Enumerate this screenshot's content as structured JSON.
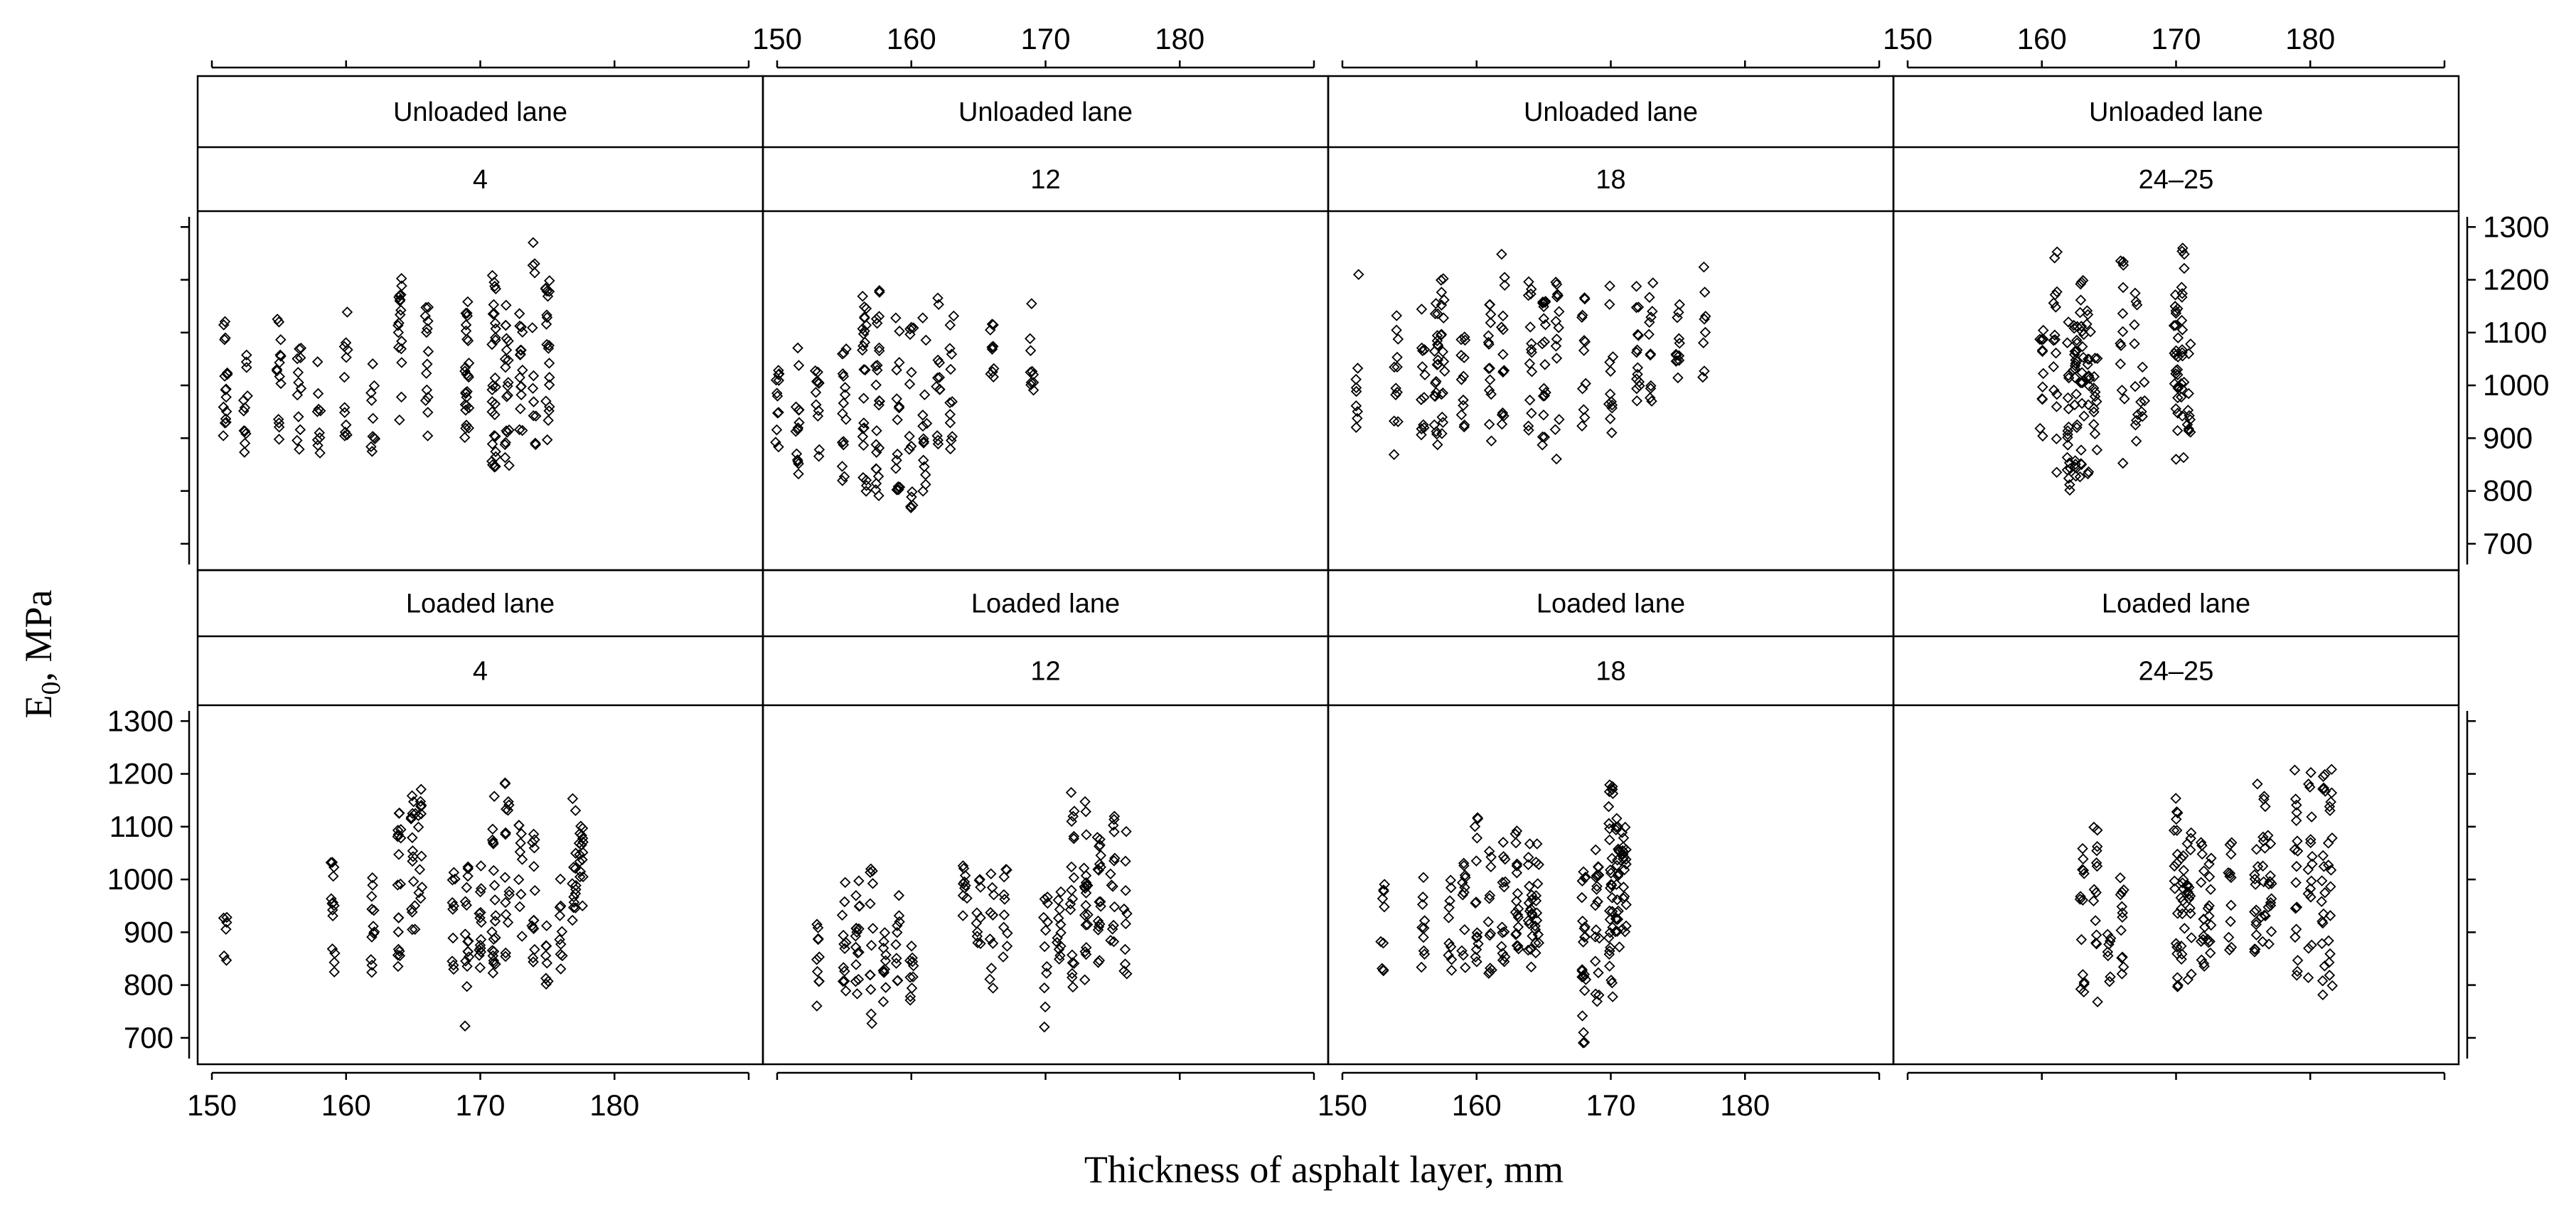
{
  "chart_data": {
    "type": "scatter",
    "xlabel": "Thickness of asphalt layer, mm",
    "ylabel": "E",
    "ylabel_sub": "0",
    "ylabel_suffix": ", MPa",
    "xlim": [
      150,
      190
    ],
    "ylim": [
      650,
      1330
    ],
    "x_ticks": [
      150,
      160,
      170,
      180
    ],
    "y_ticks": [
      700,
      800,
      900,
      1000,
      1100,
      1200,
      1300
    ],
    "marker": "open-diamond",
    "grid": false,
    "layout": "lattice 4 columns x 2 rows, alternating axis labels",
    "panels": [
      {
        "lane": "Unloaded lane",
        "age": "4",
        "row": 0,
        "col": 0,
        "groups": [
          [
            151,
            840,
            1130,
            16
          ],
          [
            152.5,
            870,
            1110,
            12
          ],
          [
            155,
            880,
            1130,
            14
          ],
          [
            156.5,
            870,
            1100,
            12
          ],
          [
            158,
            860,
            1080,
            10
          ],
          [
            160,
            880,
            1150,
            12
          ],
          [
            162,
            870,
            1050,
            10
          ],
          [
            164,
            900,
            1220,
            18
          ],
          [
            166,
            900,
            1170,
            14
          ],
          [
            169,
            880,
            1170,
            26
          ],
          [
            171,
            840,
            1210,
            30
          ],
          [
            172,
            840,
            1180,
            20
          ],
          [
            173,
            880,
            1190,
            16
          ],
          [
            174,
            880,
            1280,
            12
          ],
          [
            175,
            880,
            1250,
            20
          ]
        ]
      },
      {
        "lane": "Unloaded lane",
        "age": "12",
        "row": 0,
        "col": 1,
        "groups": [
          [
            150,
            830,
            1090,
            12
          ],
          [
            151.5,
            810,
            1080,
            14
          ],
          [
            153,
            820,
            1060,
            12
          ],
          [
            155,
            810,
            1080,
            16
          ],
          [
            156.5,
            790,
            1170,
            24
          ],
          [
            157.5,
            780,
            1210,
            24
          ],
          [
            159,
            800,
            1150,
            16
          ],
          [
            160,
            760,
            1130,
            14
          ],
          [
            161,
            780,
            1150,
            14
          ],
          [
            162,
            830,
            1180,
            12
          ],
          [
            163,
            860,
            1150,
            12
          ],
          [
            166,
            1010,
            1140,
            10
          ],
          [
            169,
            990,
            1160,
            10
          ]
        ]
      },
      {
        "lane": "Unloaded lane",
        "age": "18",
        "row": 0,
        "col": 2,
        "groups": [
          [
            151,
            920,
            1040,
            8
          ],
          [
            151.2,
            1210,
            1210,
            1
          ],
          [
            154,
            860,
            1140,
            12
          ],
          [
            156,
            880,
            1170,
            12
          ],
          [
            157,
            880,
            1200,
            20
          ],
          [
            157.5,
            890,
            1210,
            16
          ],
          [
            159,
            920,
            1110,
            12
          ],
          [
            161,
            890,
            1170,
            14
          ],
          [
            162,
            890,
            1270,
            14
          ],
          [
            164,
            880,
            1240,
            14
          ],
          [
            165,
            860,
            1210,
            18
          ],
          [
            166,
            860,
            1200,
            14
          ],
          [
            168,
            920,
            1180,
            12
          ],
          [
            170,
            900,
            1190,
            12
          ],
          [
            172,
            950,
            1190,
            14
          ],
          [
            173,
            970,
            1200,
            12
          ],
          [
            175,
            990,
            1170,
            12
          ],
          [
            177,
            990,
            1230,
            8
          ]
        ]
      },
      {
        "lane": "Unloaded lane",
        "age": "24–25",
        "row": 0,
        "col": 3,
        "groups": [
          [
            160,
            880,
            1150,
            12
          ],
          [
            161,
            790,
            1260,
            16
          ],
          [
            162,
            800,
            1130,
            18
          ],
          [
            162.5,
            810,
            1170,
            24
          ],
          [
            163,
            810,
            1240,
            20
          ],
          [
            163.5,
            830,
            1180,
            14
          ],
          [
            164,
            860,
            1150,
            12
          ],
          [
            166,
            840,
            1290,
            12
          ],
          [
            167,
            860,
            1210,
            10
          ],
          [
            167.5,
            900,
            1090,
            6
          ],
          [
            170,
            850,
            1180,
            24
          ],
          [
            170.5,
            860,
            1260,
            18
          ],
          [
            171,
            900,
            1090,
            10
          ]
        ]
      },
      {
        "lane": "Loaded lane",
        "age": "4",
        "row": 1,
        "col": 0,
        "groups": [
          [
            151,
            810,
            940,
            6
          ],
          [
            159,
            820,
            1050,
            14
          ],
          [
            162,
            810,
            1040,
            12
          ],
          [
            164,
            810,
            1140,
            18
          ],
          [
            165,
            890,
            1210,
            16
          ],
          [
            165.5,
            950,
            1200,
            12
          ],
          [
            168,
            770,
            1030,
            10
          ],
          [
            169,
            720,
            1070,
            16
          ],
          [
            170,
            780,
            1100,
            14
          ],
          [
            171,
            790,
            1200,
            20
          ],
          [
            172,
            780,
            1230,
            16
          ],
          [
            173,
            880,
            1110,
            10
          ],
          [
            174,
            840,
            1140,
            14
          ],
          [
            175,
            790,
            920,
            8
          ],
          [
            176,
            810,
            1020,
            10
          ],
          [
            177,
            920,
            1180,
            14
          ],
          [
            177.5,
            910,
            1130,
            16
          ]
        ]
      },
      {
        "lane": "Loaded lane",
        "age": "12",
        "row": 1,
        "col": 1,
        "groups": [
          [
            153,
            760,
            920,
            10
          ],
          [
            155,
            780,
            1010,
            12
          ],
          [
            156,
            760,
            1030,
            16
          ],
          [
            157,
            690,
            1030,
            12
          ],
          [
            158,
            760,
            940,
            12
          ],
          [
            159,
            800,
            970,
            10
          ],
          [
            160,
            760,
            940,
            10
          ],
          [
            164,
            840,
            1030,
            10
          ],
          [
            165,
            860,
            1030,
            10
          ],
          [
            166,
            780,
            1030,
            10
          ],
          [
            167,
            850,
            1040,
            10
          ],
          [
            170,
            710,
            1040,
            12
          ],
          [
            171,
            840,
            980,
            12
          ],
          [
            172,
            790,
            1170,
            18
          ],
          [
            173,
            780,
            1150,
            20
          ],
          [
            174,
            840,
            1140,
            18
          ],
          [
            175,
            860,
            1130,
            14
          ],
          [
            176,
            820,
            1110,
            10
          ]
        ]
      },
      {
        "lane": "Loaded lane",
        "age": "18",
        "row": 1,
        "col": 2,
        "groups": [
          [
            153,
            820,
            1010,
            10
          ],
          [
            156,
            820,
            1020,
            10
          ],
          [
            158,
            800,
            1000,
            10
          ],
          [
            159,
            800,
            1050,
            12
          ],
          [
            160,
            830,
            1150,
            14
          ],
          [
            161,
            820,
            1080,
            12
          ],
          [
            162,
            830,
            1120,
            14
          ],
          [
            163,
            850,
            1100,
            18
          ],
          [
            164,
            830,
            1090,
            18
          ],
          [
            164.5,
            860,
            1080,
            14
          ],
          [
            168,
            690,
            1020,
            24
          ],
          [
            169,
            760,
            1060,
            20
          ],
          [
            170,
            770,
            1190,
            30
          ],
          [
            170.5,
            860,
            1140,
            22
          ],
          [
            171,
            870,
            1100,
            20
          ]
        ]
      },
      {
        "lane": "Loaded lane",
        "age": "24–25",
        "row": 1,
        "col": 3,
        "groups": [
          [
            163,
            770,
            1070,
            14
          ],
          [
            164,
            760,
            1100,
            14
          ],
          [
            165,
            750,
            900,
            8
          ],
          [
            166,
            800,
            1050,
            12
          ],
          [
            170,
            780,
            1160,
            18
          ],
          [
            170.5,
            830,
            1100,
            14
          ],
          [
            171,
            800,
            1090,
            16
          ],
          [
            172,
            820,
            1070,
            14
          ],
          [
            172.5,
            770,
            1050,
            12
          ],
          [
            174,
            860,
            1080,
            12
          ],
          [
            176,
            860,
            1200,
            14
          ],
          [
            176.5,
            880,
            1190,
            12
          ],
          [
            177,
            850,
            1130,
            12
          ],
          [
            179,
            800,
            1230,
            18
          ],
          [
            180,
            790,
            1220,
            16
          ],
          [
            181,
            780,
            1210,
            18
          ],
          [
            181.5,
            790,
            1220,
            16
          ]
        ]
      }
    ]
  }
}
